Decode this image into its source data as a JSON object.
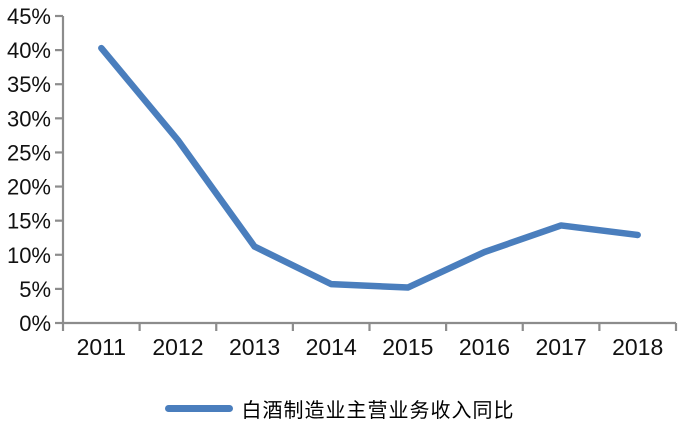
{
  "chart_data": {
    "type": "line",
    "title": "",
    "categories": [
      "2011",
      "2012",
      "2013",
      "2014",
      "2015",
      "2016",
      "2017",
      "2018"
    ],
    "series": [
      {
        "name": "白酒制造业主营业务收入同比",
        "values": [
          40.3,
          26.8,
          11.2,
          5.7,
          5.2,
          10.4,
          14.3,
          12.9
        ],
        "color": "#4a7ebd"
      }
    ],
    "xlabel": "",
    "ylabel": "",
    "ylim": [
      0,
      45
    ],
    "ytick_step": 5,
    "ytick_labels": [
      "0%",
      "5%",
      "10%",
      "15%",
      "20%",
      "25%",
      "30%",
      "35%",
      "40%",
      "45%"
    ],
    "grid": false,
    "legend_position": "bottom",
    "axis_color": "#8c8c8c",
    "tick_label_color": "#111111",
    "background": "#ffffff"
  }
}
